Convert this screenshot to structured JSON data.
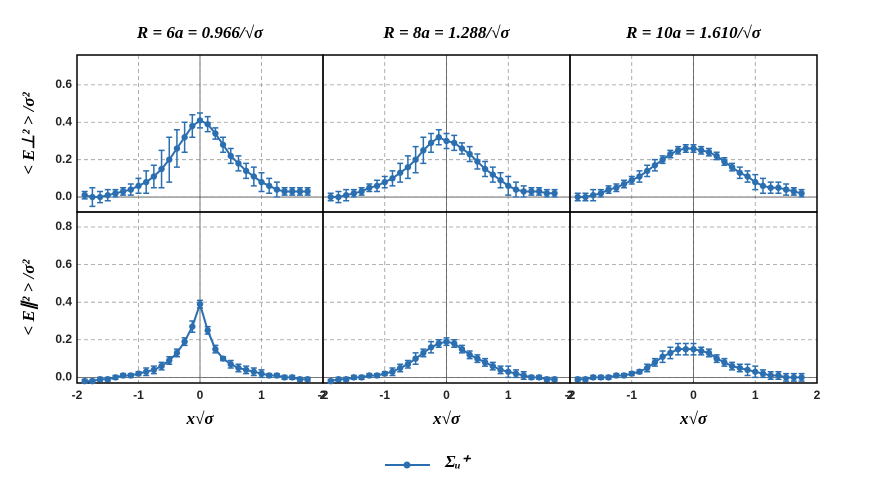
{
  "chart_data": [
    {
      "type": "line",
      "title": "R = 6a = 0.966/√σ",
      "ylabel": "< E⊥² > /σ²",
      "x": [
        -1.875,
        -1.75,
        -1.625,
        -1.5,
        -1.375,
        -1.25,
        -1.125,
        -1,
        -0.875,
        -0.75,
        -0.625,
        -0.5,
        -0.375,
        -0.25,
        -0.125,
        0,
        0.125,
        0.25,
        0.375,
        0.5,
        0.625,
        0.75,
        0.875,
        1,
        1.125,
        1.25,
        1.375,
        1.5,
        1.625,
        1.75
      ],
      "series": [
        {
          "name": "Σᵤ⁺",
          "color": "#2b6fb0",
          "values": [
            0.01,
            0.0,
            0.0,
            0.01,
            0.02,
            0.03,
            0.04,
            0.06,
            0.08,
            0.11,
            0.15,
            0.2,
            0.26,
            0.32,
            0.38,
            0.41,
            0.39,
            0.34,
            0.28,
            0.22,
            0.18,
            0.14,
            0.11,
            0.08,
            0.06,
            0.04,
            0.03,
            0.03,
            0.03,
            0.03
          ],
          "errors": [
            0.02,
            0.05,
            0.03,
            0.03,
            0.02,
            0.02,
            0.03,
            0.04,
            0.06,
            0.06,
            0.1,
            0.12,
            0.1,
            0.08,
            0.06,
            0.04,
            0.04,
            0.03,
            0.04,
            0.04,
            0.04,
            0.04,
            0.05,
            0.05,
            0.04,
            0.04,
            0.02,
            0.02,
            0.02,
            0.02
          ]
        }
      ],
      "ylim": [
        -0.08,
        0.76
      ],
      "yticks": [
        {
          "value": 0,
          "label": "0.0"
        },
        {
          "value": 0.2,
          "label": "0.2"
        },
        {
          "value": 0.4,
          "label": "0.4"
        },
        {
          "value": 0.6,
          "label": "0.6"
        }
      ],
      "grid": true
    },
    {
      "type": "line",
      "title": "R = 8a = 1.288/√σ",
      "x": [
        -1.875,
        -1.75,
        -1.625,
        -1.5,
        -1.375,
        -1.25,
        -1.125,
        -1,
        -0.875,
        -0.75,
        -0.625,
        -0.5,
        -0.375,
        -0.25,
        -0.125,
        0,
        0.125,
        0.25,
        0.375,
        0.5,
        0.625,
        0.75,
        0.875,
        1,
        1.125,
        1.25,
        1.375,
        1.5,
        1.625,
        1.75
      ],
      "series": [
        {
          "color": "#2b6fb0",
          "values": [
            0.0,
            0.0,
            0.01,
            0.02,
            0.03,
            0.05,
            0.06,
            0.08,
            0.1,
            0.13,
            0.16,
            0.2,
            0.25,
            0.29,
            0.32,
            0.3,
            0.29,
            0.26,
            0.23,
            0.19,
            0.15,
            0.12,
            0.09,
            0.06,
            0.04,
            0.03,
            0.03,
            0.03,
            0.02,
            0.02
          ],
          "errors": [
            0.02,
            0.03,
            0.03,
            0.02,
            0.02,
            0.02,
            0.03,
            0.03,
            0.04,
            0.05,
            0.06,
            0.07,
            0.07,
            0.05,
            0.04,
            0.04,
            0.04,
            0.03,
            0.04,
            0.04,
            0.04,
            0.04,
            0.04,
            0.05,
            0.04,
            0.03,
            0.02,
            0.02,
            0.02,
            0.02
          ]
        }
      ],
      "grid": true
    },
    {
      "type": "line",
      "title": "R = 10a = 1.610/√σ",
      "x": [
        -1.875,
        -1.75,
        -1.625,
        -1.5,
        -1.375,
        -1.25,
        -1.125,
        -1,
        -0.875,
        -0.75,
        -0.625,
        -0.5,
        -0.375,
        -0.25,
        -0.125,
        0,
        0.125,
        0.25,
        0.375,
        0.5,
        0.625,
        0.75,
        0.875,
        1,
        1.125,
        1.25,
        1.375,
        1.5,
        1.625,
        1.75
      ],
      "series": [
        {
          "color": "#2b6fb0",
          "values": [
            0.0,
            0.0,
            0.01,
            0.02,
            0.04,
            0.05,
            0.07,
            0.09,
            0.11,
            0.14,
            0.17,
            0.2,
            0.23,
            0.25,
            0.26,
            0.26,
            0.25,
            0.24,
            0.22,
            0.19,
            0.16,
            0.13,
            0.11,
            0.08,
            0.06,
            0.05,
            0.05,
            0.04,
            0.03,
            0.02
          ],
          "errors": [
            0.02,
            0.02,
            0.03,
            0.02,
            0.02,
            0.02,
            0.02,
            0.02,
            0.03,
            0.03,
            0.03,
            0.02,
            0.02,
            0.02,
            0.02,
            0.02,
            0.02,
            0.02,
            0.02,
            0.02,
            0.02,
            0.03,
            0.03,
            0.04,
            0.04,
            0.03,
            0.03,
            0.03,
            0.02,
            0.02
          ]
        }
      ],
      "grid": true
    },
    {
      "type": "line",
      "ylabel": "< E∥² > /σ²",
      "xlabel": "x√σ",
      "x": [
        -1.875,
        -1.75,
        -1.625,
        -1.5,
        -1.375,
        -1.25,
        -1.125,
        -1,
        -0.875,
        -0.75,
        -0.625,
        -0.5,
        -0.375,
        -0.25,
        -0.125,
        0,
        0.125,
        0.25,
        0.375,
        0.5,
        0.625,
        0.75,
        0.875,
        1,
        1.125,
        1.25,
        1.375,
        1.5,
        1.625,
        1.75
      ],
      "series": [
        {
          "color": "#2b6fb0",
          "values": [
            -0.02,
            -0.02,
            -0.01,
            -0.01,
            0.0,
            0.01,
            0.01,
            0.02,
            0.03,
            0.04,
            0.06,
            0.09,
            0.13,
            0.19,
            0.27,
            0.39,
            0.25,
            0.15,
            0.1,
            0.07,
            0.05,
            0.04,
            0.03,
            0.02,
            0.01,
            0.01,
            0.0,
            0.0,
            -0.01,
            -0.01
          ],
          "errors": [
            0.01,
            0.01,
            0.01,
            0.01,
            0.01,
            0.01,
            0.01,
            0.01,
            0.02,
            0.02,
            0.02,
            0.02,
            0.02,
            0.02,
            0.03,
            0.02,
            0.02,
            0.02,
            0.01,
            0.02,
            0.02,
            0.02,
            0.02,
            0.02,
            0.01,
            0.01,
            0.01,
            0.01,
            0.01,
            0.01
          ]
        }
      ],
      "xlim": [
        -2,
        2
      ],
      "xticks": [
        -2,
        -1,
        0,
        1,
        2
      ],
      "ylim": [
        -0.03,
        0.88
      ],
      "yticks": [
        {
          "value": 0,
          "label": "0.0"
        },
        {
          "value": 0.2,
          "label": "0.2"
        },
        {
          "value": 0.4,
          "label": "0.4"
        },
        {
          "value": 0.6,
          "label": "0.6"
        },
        {
          "value": 0.8,
          "label": "0.8"
        }
      ],
      "grid": true
    },
    {
      "type": "line",
      "xlabel": "x√σ",
      "x": [
        -1.875,
        -1.75,
        -1.625,
        -1.5,
        -1.375,
        -1.25,
        -1.125,
        -1,
        -0.875,
        -0.75,
        -0.625,
        -0.5,
        -0.375,
        -0.25,
        -0.125,
        0,
        0.125,
        0.25,
        0.375,
        0.5,
        0.625,
        0.75,
        0.875,
        1,
        1.125,
        1.25,
        1.375,
        1.5,
        1.625,
        1.75
      ],
      "series": [
        {
          "color": "#2b6fb0",
          "values": [
            -0.02,
            -0.01,
            -0.01,
            0.0,
            0.0,
            0.01,
            0.01,
            0.02,
            0.03,
            0.05,
            0.07,
            0.1,
            0.13,
            0.16,
            0.18,
            0.19,
            0.18,
            0.15,
            0.12,
            0.1,
            0.08,
            0.06,
            0.04,
            0.03,
            0.02,
            0.01,
            0.0,
            0.0,
            -0.01,
            -0.01
          ],
          "errors": [
            0.01,
            0.01,
            0.01,
            0.01,
            0.01,
            0.01,
            0.01,
            0.01,
            0.02,
            0.02,
            0.02,
            0.03,
            0.02,
            0.03,
            0.02,
            0.02,
            0.02,
            0.02,
            0.02,
            0.02,
            0.02,
            0.02,
            0.02,
            0.03,
            0.02,
            0.02,
            0.01,
            0.01,
            0.01,
            0.01
          ]
        }
      ],
      "xlim": [
        -2,
        2
      ],
      "xticks": [
        -2,
        -1,
        0,
        1,
        2
      ],
      "grid": true
    },
    {
      "type": "line",
      "xlabel": "x√σ",
      "x": [
        -1.875,
        -1.75,
        -1.625,
        -1.5,
        -1.375,
        -1.25,
        -1.125,
        -1,
        -0.875,
        -0.75,
        -0.625,
        -0.5,
        -0.375,
        -0.25,
        -0.125,
        0,
        0.125,
        0.25,
        0.375,
        0.5,
        0.625,
        0.75,
        0.875,
        1,
        1.125,
        1.25,
        1.375,
        1.5,
        1.625,
        1.75
      ],
      "series": [
        {
          "color": "#2b6fb0",
          "values": [
            -0.01,
            -0.01,
            0.0,
            0.0,
            0.0,
            0.01,
            0.01,
            0.02,
            0.03,
            0.05,
            0.08,
            0.11,
            0.13,
            0.15,
            0.15,
            0.15,
            0.14,
            0.13,
            0.1,
            0.08,
            0.06,
            0.05,
            0.04,
            0.03,
            0.02,
            0.01,
            0.01,
            0.0,
            0.0,
            0.0
          ],
          "errors": [
            0.01,
            0.01,
            0.01,
            0.01,
            0.01,
            0.01,
            0.01,
            0.01,
            0.01,
            0.02,
            0.02,
            0.03,
            0.03,
            0.03,
            0.03,
            0.03,
            0.02,
            0.02,
            0.02,
            0.02,
            0.02,
            0.02,
            0.03,
            0.03,
            0.02,
            0.02,
            0.02,
            0.02,
            0.02,
            0.02
          ]
        }
      ],
      "xlim": [
        -2,
        2
      ],
      "xticks": [
        -2,
        -1,
        0,
        1,
        2
      ],
      "grid": true
    }
  ]
}
